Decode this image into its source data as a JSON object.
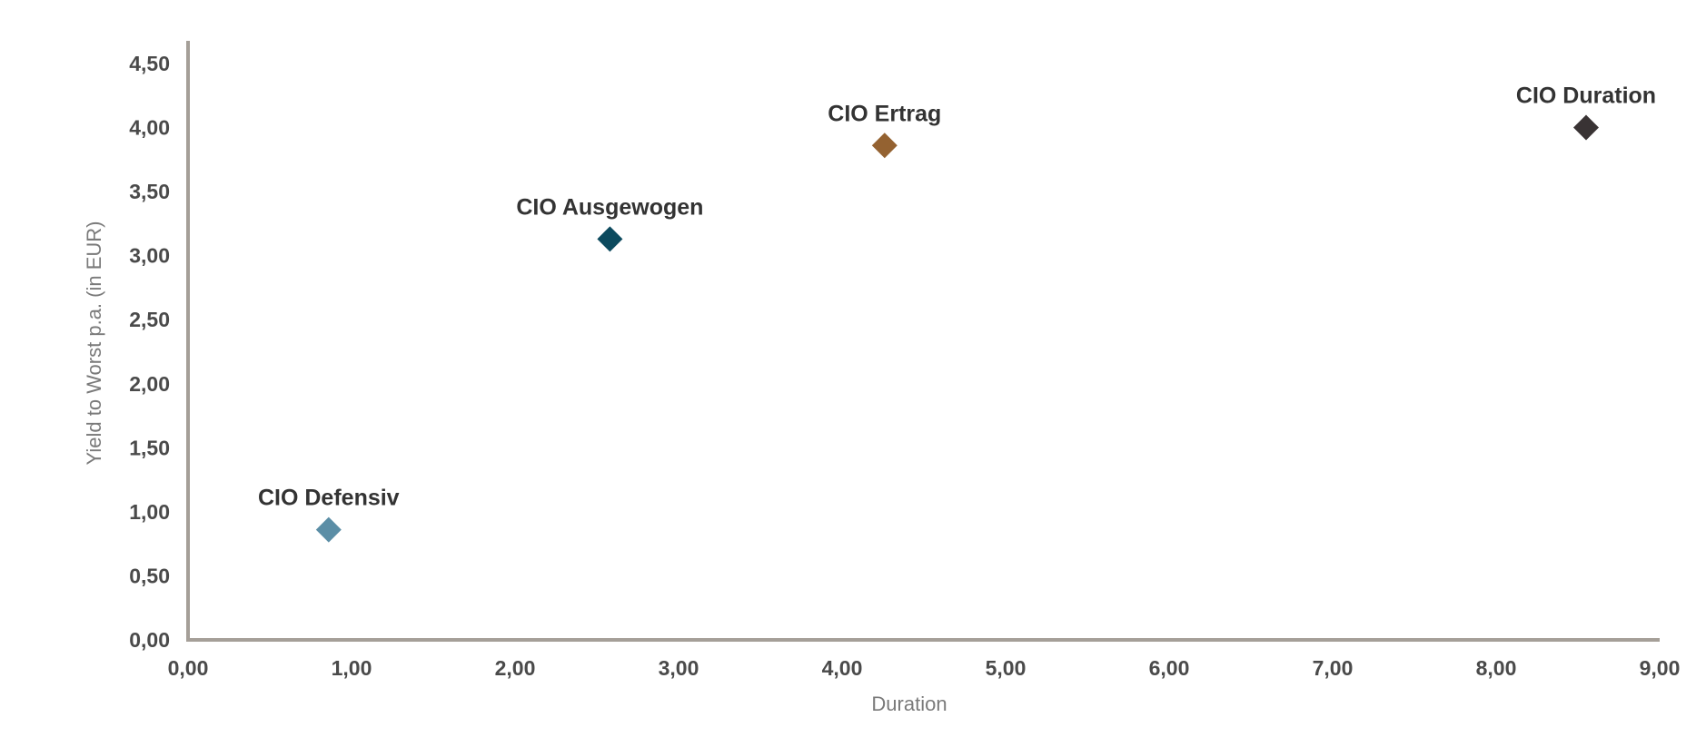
{
  "chart_data": {
    "type": "scatter",
    "title": "",
    "xlabel": "Duration",
    "ylabel": "Yield to Worst p.a. (in EUR)",
    "xlim": [
      0,
      9
    ],
    "ylim": [
      0,
      4.7
    ],
    "x_ticks": [
      0,
      1,
      2,
      3,
      4,
      5,
      6,
      7,
      8,
      9
    ],
    "x_tick_labels": [
      "0,00",
      "1,00",
      "2,00",
      "3,00",
      "4,00",
      "5,00",
      "6,00",
      "7,00",
      "8,00",
      "9,00"
    ],
    "y_ticks": [
      0,
      0.5,
      1,
      1.5,
      2,
      2.5,
      3,
      3.5,
      4,
      4.5
    ],
    "y_tick_labels": [
      "0,00",
      "0,50",
      "1,00",
      "1,50",
      "2,00",
      "2,50",
      "3,00",
      "3,50",
      "4,00",
      "4,50"
    ],
    "grid": false,
    "marker": "diamond",
    "points": [
      {
        "name": "CIO Defensiv",
        "x": 0.86,
        "y": 0.86,
        "color": "#5b8ea6"
      },
      {
        "name": "CIO Ausgewogen",
        "x": 2.58,
        "y": 3.13,
        "color": "#0c4a5e"
      },
      {
        "name": "CIO Ertrag",
        "x": 4.26,
        "y": 3.86,
        "color": "#946231"
      },
      {
        "name": "CIO Duration",
        "x": 8.55,
        "y": 4.0,
        "color": "#393334"
      }
    ]
  }
}
